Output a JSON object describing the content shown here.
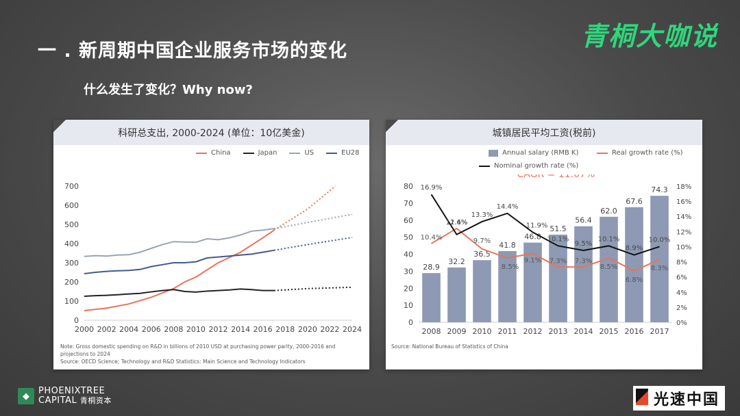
{
  "slide": {
    "title": "一 . 新周期中国企业服务市场的变化",
    "subtitle": "什么发生了变化？Why now?",
    "brand": "青桐大咖说",
    "footer_left_line1": "PHOENIXTREE",
    "footer_left_line2": "CAPITAL",
    "footer_left_cn": "青桐资本",
    "footer_right": "光速中国"
  },
  "left_panel": {
    "header": "科研总支出, 2000-2024 (单位：10亿美金)",
    "note_line1": "Note: Gross domestic spending on R&D in billions of 2010 USD at purchasing power parity, 2000-2016 and",
    "note_line2": "projections to 2024",
    "note_line3": "Source: OECD Science; Technology and R&D Statistics: Main Science and Technology Indicators"
  },
  "right_panel": {
    "header": "城镇居民平均工资(税前)",
    "cagr": "CAGR = 11.07%",
    "source": "Source: National Bureau of Statistics of China"
  },
  "chart_data": [
    {
      "type": "line",
      "title": "科研总支出, 2000-2024 (单位：10亿美金)",
      "x_ticks": [
        "2000",
        "2002",
        "2004",
        "2006",
        "2008",
        "2010",
        "2012",
        "2014",
        "2016",
        "2018",
        "2020",
        "2022",
        "2024"
      ],
      "y_ticks": [
        "0",
        "100",
        "200",
        "300",
        "400",
        "500",
        "600",
        "700"
      ],
      "ylim": [
        0,
        700
      ],
      "xlim": [
        2000,
        2024
      ],
      "legend_position": "top-right",
      "series": [
        {
          "name": "China",
          "color": "#e8735a",
          "x": [
            2000,
            2002,
            2004,
            2006,
            2008,
            2009,
            2010,
            2012,
            2014,
            2016,
            2017
          ],
          "y": [
            50,
            63,
            85,
            120,
            165,
            200,
            225,
            300,
            355,
            430,
            470
          ],
          "proj_x": [
            2017,
            2020,
            2022.5
          ],
          "proj_y": [
            470,
            580,
            700
          ]
        },
        {
          "name": "Japan",
          "color": "#222222",
          "x": [
            2000,
            2001,
            2002,
            2003,
            2004,
            2005,
            2006,
            2007,
            2008,
            2009,
            2010,
            2011,
            2012,
            2013,
            2014,
            2015,
            2016,
            2017
          ],
          "y": [
            125,
            128,
            130,
            133,
            137,
            140,
            148,
            155,
            160,
            150,
            147,
            152,
            155,
            158,
            163,
            160,
            155,
            155
          ],
          "proj_x": [
            2017,
            2020,
            2024
          ],
          "proj_y": [
            155,
            165,
            172
          ]
        },
        {
          "name": "US",
          "color": "#9aa3b5",
          "x": [
            2000,
            2001,
            2002,
            2003,
            2004,
            2005,
            2006,
            2007,
            2008,
            2009,
            2010,
            2011,
            2012,
            2013,
            2014,
            2015,
            2016,
            2017
          ],
          "y": [
            333,
            337,
            335,
            340,
            342,
            355,
            375,
            395,
            410,
            408,
            407,
            425,
            420,
            430,
            445,
            465,
            470,
            478
          ],
          "proj_x": [
            2017,
            2020,
            2024
          ],
          "proj_y": [
            478,
            510,
            553
          ]
        },
        {
          "name": "EU28",
          "color": "#3f5a8c",
          "x": [
            2000,
            2001,
            2002,
            2003,
            2004,
            2005,
            2006,
            2007,
            2008,
            2009,
            2010,
            2011,
            2012,
            2013,
            2014,
            2015,
            2016,
            2017
          ],
          "y": [
            243,
            250,
            255,
            258,
            260,
            265,
            280,
            290,
            300,
            300,
            305,
            325,
            330,
            335,
            340,
            345,
            355,
            365
          ],
          "proj_x": [
            2017,
            2020,
            2024
          ],
          "proj_y": [
            365,
            395,
            432
          ]
        }
      ]
    },
    {
      "type": "bar",
      "title": "城镇居民平均工资(税前)",
      "categories": [
        "2008",
        "2009",
        "2010",
        "2011",
        "2012",
        "2013",
        "2014",
        "2015",
        "2016",
        "2017"
      ],
      "y_left_ticks": [
        "0",
        "10",
        "20",
        "30",
        "40",
        "50",
        "60",
        "70",
        "80"
      ],
      "y_right_ticks": [
        "0%",
        "2%",
        "4%",
        "6%",
        "8%",
        "10%",
        "12%",
        "14%",
        "16%",
        "18%"
      ],
      "ylim_left": [
        0,
        80
      ],
      "ylim_right": [
        0,
        18
      ],
      "legend_position": "top",
      "series": [
        {
          "name": "Annual salary (RMB K)",
          "kind": "bar",
          "color": "#8e9ab4",
          "values": [
            28.9,
            32.2,
            36.5,
            41.8,
            46.8,
            51.5,
            56.4,
            62.0,
            67.6,
            74.3
          ],
          "labels": [
            "28.9",
            "32.2",
            "36.5",
            "41.8",
            "46.8",
            "51.5",
            "56.4",
            "62.0",
            "67.6",
            "74.3"
          ]
        },
        {
          "name": "Real growth rate (%)",
          "kind": "line",
          "color": "#e8735a",
          "values": [
            10.4,
            12.4,
            9.7,
            8.5,
            9.1,
            7.3,
            7.3,
            8.5,
            6.8,
            8.3
          ],
          "labels": [
            "10.4%",
            "12.4%",
            "9.7%",
            "8.5%",
            "9.1%",
            "7.3%",
            "7.3%",
            "8.5%",
            "6.8%",
            "8.3%"
          ]
        },
        {
          "name": "Nominal growth rate (%)",
          "kind": "line",
          "color": "#111111",
          "values": [
            16.9,
            11.6,
            13.3,
            14.4,
            11.9,
            10.1,
            9.5,
            10.1,
            8.9,
            10.0
          ],
          "labels": [
            "16.9%",
            "11.6%",
            "13.3%",
            "14.4%",
            "11.9%",
            "10.1%",
            "9.5%",
            "10.1%",
            "8.9%",
            "10.0%"
          ]
        }
      ]
    }
  ]
}
